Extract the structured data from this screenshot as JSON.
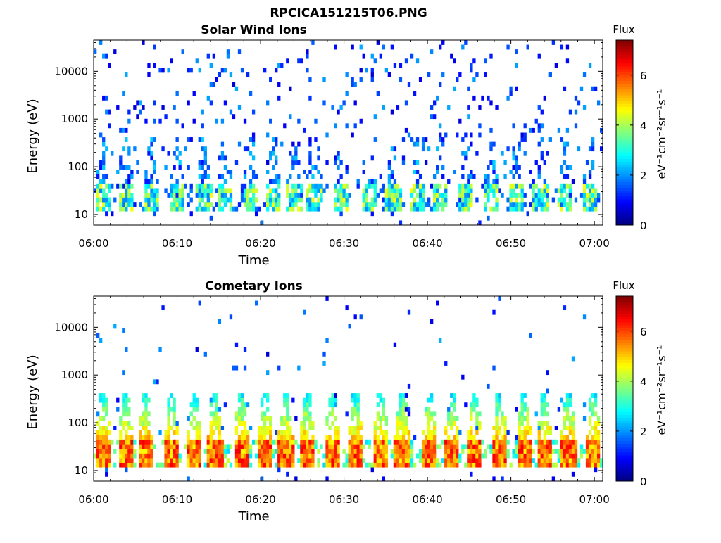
{
  "figure_title": "RPCICA151215T06.PNG",
  "chart_data": [
    {
      "type": "heatmap",
      "title": "Solar Wind Ions",
      "xlabel": "Time",
      "ylabel": "Energy (eV)",
      "x_ticks": [
        "06:00",
        "06:10",
        "06:20",
        "06:30",
        "06:40",
        "06:50",
        "07:00"
      ],
      "xlim": [
        "06:00",
        "07:01"
      ],
      "y_scale": "log",
      "y_ticks": [
        10,
        100,
        1000,
        10000
      ],
      "ylim": [
        6,
        45000
      ],
      "colorbar": {
        "label": "eV⁻¹cm⁻²sr⁻¹s⁻¹",
        "title": "Flux",
        "range": [
          0,
          7.4
        ],
        "ticks": [
          0,
          2,
          4,
          6
        ],
        "colormap": "jet"
      },
      "description": "Sparse low flux (~1-2) scattered over 100-30000 eV; repeated bursts of flux 2-5 in the 15-60 eV band roughly every 2-3 minutes."
    },
    {
      "type": "heatmap",
      "title": "Cometary Ions",
      "xlabel": "Time",
      "ylabel": "Energy (eV)",
      "x_ticks": [
        "06:00",
        "06:10",
        "06:20",
        "06:30",
        "06:40",
        "06:50",
        "07:00"
      ],
      "xlim": [
        "06:00",
        "07:01"
      ],
      "y_scale": "log",
      "y_ticks": [
        10,
        100,
        1000,
        10000
      ],
      "ylim": [
        6,
        45000
      ],
      "colorbar": {
        "label": "eV⁻¹cm⁻²sr⁻¹s⁻¹",
        "title": "Flux",
        "range": [
          0,
          7.4
        ],
        "ticks": [
          0,
          2,
          4,
          6
        ],
        "colormap": "jet"
      },
      "description": "Strong bursts (flux 4-6.5) in the 15-40 eV band with tails extending up to ~300 eV, recurring roughly every 2-3 minutes; sparse low flux above 1000 eV."
    }
  ]
}
